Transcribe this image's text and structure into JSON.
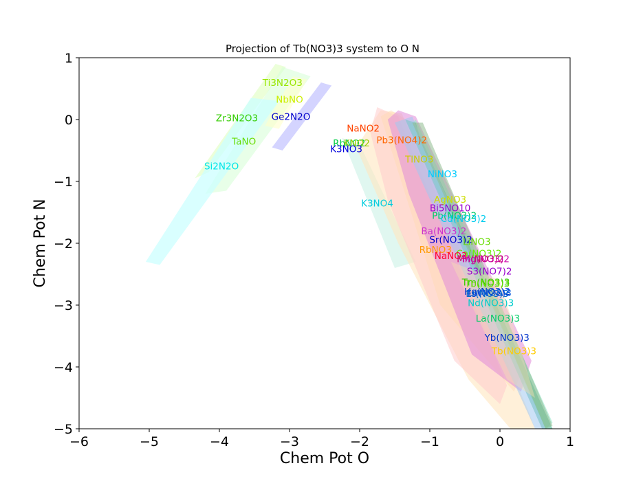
{
  "chart_data": {
    "type": "area",
    "title": "Projection of Tb(NO3)3 system to O N",
    "xlabel": "Chem Pot O",
    "ylabel": "Chem Pot N",
    "xlim": [
      -6,
      1
    ],
    "ylim": [
      -5,
      1
    ],
    "xticks": [
      -6,
      -5,
      -4,
      -3,
      -2,
      -1,
      0,
      1
    ],
    "yticks": [
      -5,
      -4,
      -3,
      -2,
      -1,
      0,
      1
    ],
    "xtick_labels": [
      "−6",
      "−5",
      "−4",
      "−3",
      "−2",
      "−1",
      "0",
      "1"
    ],
    "ytick_labels": [
      "−5",
      "−4",
      "−3",
      "−2",
      "−1",
      "0",
      "1"
    ],
    "grid": false,
    "regions": [
      {
        "color": "#e6ffcc",
        "opacity": 0.75,
        "points": [
          [
            -4.35,
            -0.95
          ],
          [
            -3.2,
            0.9
          ],
          [
            -3.05,
            0.85
          ],
          [
            -4.15,
            -0.85
          ]
        ]
      },
      {
        "color": "#d9ffd9",
        "opacity": 0.6,
        "points": [
          [
            -4.2,
            -1.2
          ],
          [
            -3.1,
            0.85
          ],
          [
            -2.7,
            0.7
          ],
          [
            -3.9,
            -1.15
          ]
        ]
      },
      {
        "color": "#ccffff",
        "opacity": 0.75,
        "points": [
          [
            -5.05,
            -2.3
          ],
          [
            -3.55,
            0.35
          ],
          [
            -3.15,
            0.3
          ],
          [
            -4.85,
            -2.35
          ]
        ]
      },
      {
        "color": "#ffffcc",
        "opacity": 0.6,
        "points": [
          [
            -3.35,
            -0.1
          ],
          [
            -2.95,
            0.7
          ],
          [
            -2.75,
            0.65
          ],
          [
            -3.15,
            -0.15
          ]
        ]
      },
      {
        "color": "#ccccff",
        "opacity": 0.85,
        "points": [
          [
            -3.25,
            -0.45
          ],
          [
            -2.55,
            0.6
          ],
          [
            -2.4,
            0.55
          ],
          [
            -3.1,
            -0.5
          ]
        ]
      },
      {
        "color": "#ccf2e6",
        "opacity": 0.6,
        "points": [
          [
            -2.25,
            -0.3
          ],
          [
            -2.0,
            -0.4
          ],
          [
            -1.2,
            -2.3
          ],
          [
            -1.5,
            -2.4
          ]
        ]
      },
      {
        "color": "#ffe6bf",
        "opacity": 0.6,
        "points": [
          [
            -2.05,
            -0.45
          ],
          [
            -1.7,
            0.15
          ],
          [
            -1.4,
            0.1
          ],
          [
            0.4,
            -4.7
          ],
          [
            0.5,
            -5.0
          ],
          [
            0.15,
            -5.0
          ],
          [
            -0.45,
            -4.2
          ],
          [
            -1.45,
            -2.0
          ]
        ]
      },
      {
        "color": "#ffcccc",
        "opacity": 0.55,
        "points": [
          [
            -1.85,
            -0.2
          ],
          [
            -1.75,
            0.2
          ],
          [
            -1.45,
            0.05
          ],
          [
            0.1,
            -4.3
          ],
          [
            0.0,
            -4.6
          ],
          [
            -0.65,
            -3.9
          ],
          [
            -1.6,
            -1.3
          ]
        ]
      },
      {
        "color": "#ffd9b3",
        "opacity": 0.45,
        "points": [
          [
            -1.7,
            0.05
          ],
          [
            -1.55,
            0.15
          ],
          [
            -1.2,
            -0.1
          ],
          [
            0.3,
            -4.1
          ],
          [
            0.2,
            -4.4
          ],
          [
            -0.85,
            -3.0
          ]
        ]
      },
      {
        "color": "#e08ad9",
        "opacity": 0.55,
        "points": [
          [
            -1.6,
            0.0
          ],
          [
            -1.45,
            0.15
          ],
          [
            -1.2,
            0.05
          ],
          [
            0.45,
            -3.9
          ],
          [
            0.3,
            -4.4
          ],
          [
            -0.4,
            -3.8
          ],
          [
            -1.3,
            -1.2
          ]
        ]
      },
      {
        "color": "#99e6cc",
        "opacity": 0.6,
        "points": [
          [
            -1.3,
            -0.1
          ],
          [
            -1.2,
            0.0
          ],
          [
            0.75,
            -4.9
          ],
          [
            0.65,
            -5.0
          ]
        ]
      },
      {
        "color": "#66c2a5",
        "opacity": 0.7,
        "points": [
          [
            -1.35,
            0.0
          ],
          [
            -1.2,
            -0.05
          ],
          [
            -1.15,
            -0.25
          ],
          [
            0.75,
            -5.0
          ],
          [
            0.6,
            -5.0
          ]
        ]
      },
      {
        "color": "#a3c8f0",
        "opacity": 0.55,
        "points": [
          [
            -1.5,
            -0.05
          ],
          [
            -1.25,
            0.05
          ],
          [
            0.65,
            -5.0
          ],
          [
            0.5,
            -5.0
          ]
        ]
      },
      {
        "color": "#8fbc8f",
        "opacity": 0.55,
        "points": [
          [
            -1.25,
            -0.05
          ],
          [
            -1.1,
            -0.05
          ],
          [
            0.75,
            -4.95
          ],
          [
            0.65,
            -5.0
          ]
        ]
      },
      {
        "color": "#f5deb3",
        "opacity": 0.45,
        "points": [
          [
            -0.7,
            -2.3
          ],
          [
            0.0,
            -2.6
          ],
          [
            0.5,
            -4.5
          ],
          [
            0.1,
            -4.2
          ]
        ]
      }
    ],
    "labels": [
      {
        "text": "Ti3N2O3",
        "x": -3.1,
        "y": 0.6,
        "color": "#99e600"
      },
      {
        "text": "NbNO",
        "x": -3.0,
        "y": 0.33,
        "color": "#ccee00"
      },
      {
        "text": "Zr3N2O3",
        "x": -3.75,
        "y": 0.03,
        "color": "#33cc00"
      },
      {
        "text": "Ge2N2O",
        "x": -2.98,
        "y": 0.05,
        "color": "#0000cc"
      },
      {
        "text": "TaNO",
        "x": -3.65,
        "y": -0.35,
        "color": "#66dd00"
      },
      {
        "text": "Si2N2O",
        "x": -3.97,
        "y": -0.75,
        "color": "#00e6e6"
      },
      {
        "text": "NaNO2",
        "x": -1.95,
        "y": -0.14,
        "color": "#ff4400"
      },
      {
        "text": "Pb3(NO4)2",
        "x": -1.4,
        "y": -0.33,
        "color": "#ff6600"
      },
      {
        "text": "RbNO2",
        "x": -2.15,
        "y": -0.38,
        "color": "#00cc44"
      },
      {
        "text": "KNO2",
        "x": -2.04,
        "y": -0.38,
        "color": "#99cc00"
      },
      {
        "text": "K3NO3",
        "x": -2.19,
        "y": -0.47,
        "color": "#0000dd"
      },
      {
        "text": "TlNO3",
        "x": -1.15,
        "y": -0.64,
        "color": "#cccc00"
      },
      {
        "text": "NiNO3",
        "x": -0.82,
        "y": -0.88,
        "color": "#00ccff"
      },
      {
        "text": "K3NO4",
        "x": -1.75,
        "y": -1.35,
        "color": "#00ccdd"
      },
      {
        "text": "AgNO3",
        "x": -0.71,
        "y": -1.29,
        "color": "#ccdd00"
      },
      {
        "text": "Bi5NO10",
        "x": -0.71,
        "y": -1.43,
        "color": "#9900cc"
      },
      {
        "text": "Pb(NO3)2",
        "x": -0.65,
        "y": -1.55,
        "color": "#00cc66"
      },
      {
        "text": "Cd(NO3)2",
        "x": -0.52,
        "y": -1.6,
        "color": "#00ccee"
      },
      {
        "text": "Ba(NO3)2",
        "x": -0.8,
        "y": -1.8,
        "color": "#cc33cc"
      },
      {
        "text": "Sr(NO3)2",
        "x": -0.7,
        "y": -1.94,
        "color": "#0000cc"
      },
      {
        "text": "LiNO3",
        "x": -0.33,
        "y": -1.97,
        "color": "#66dd00"
      },
      {
        "text": "RbNO3",
        "x": -0.92,
        "y": -2.1,
        "color": "#ff9900"
      },
      {
        "text": "Ca(NO3)2",
        "x": -0.3,
        "y": -2.16,
        "color": "#66ee00"
      },
      {
        "text": "NaNO3",
        "x": -0.7,
        "y": -2.2,
        "color": "#ff0033"
      },
      {
        "text": "Mn(NO3)2",
        "x": -0.28,
        "y": -2.25,
        "color": "#cc0066"
      },
      {
        "text": "Mg(NO3)2",
        "x": -0.2,
        "y": -2.25,
        "color": "#cc00aa"
      },
      {
        "text": "S3(NO7)2",
        "x": -0.15,
        "y": -2.45,
        "color": "#9900cc"
      },
      {
        "text": "Tm(NO3)3",
        "x": -0.2,
        "y": -2.63,
        "color": "#33cc00"
      },
      {
        "text": "Tb(NO3)3",
        "x": -0.18,
        "y": -2.65,
        "color": "#66dd00"
      },
      {
        "text": "Hg(NO3)2",
        "x": -0.18,
        "y": -2.78,
        "color": "#0033cc"
      },
      {
        "text": "Er(NO3)3",
        "x": -0.18,
        "y": -2.81,
        "color": "#0066cc"
      },
      {
        "text": "Lu(NO3)3",
        "x": -0.15,
        "y": -2.8,
        "color": "#0055dd"
      },
      {
        "text": "Nd(NO3)3",
        "x": -0.13,
        "y": -2.96,
        "color": "#00cccc"
      },
      {
        "text": "La(NO3)3",
        "x": -0.03,
        "y": -3.21,
        "color": "#00cc66"
      },
      {
        "text": "Yb(NO3)3",
        "x": 0.1,
        "y": -3.52,
        "color": "#0033cc"
      },
      {
        "text": "Tb(NO3)3",
        "x": 0.2,
        "y": -3.74,
        "color": "#ffcc00"
      }
    ]
  }
}
